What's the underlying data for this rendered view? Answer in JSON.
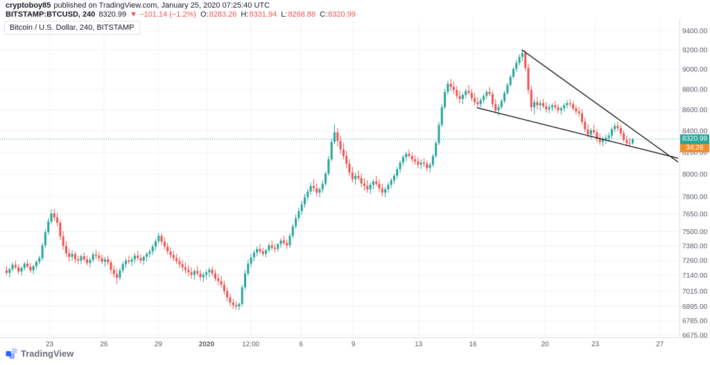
{
  "header": {
    "author": "cryptoboy85",
    "published": "published on TradingView.com, January 25, 2020 07:25:40 UTC",
    "symbol": "BITSTAMP:BTCUSD, 240",
    "last": "8320.99",
    "change": "▼ −101.14 (−1.2%)",
    "ohlc": {
      "o_label": "O:",
      "o": "8283.26",
      "h_label": "H:",
      "h": "8331.94",
      "l_label": "L:",
      "l": "8268.88",
      "c_label": "C:",
      "c": "8320.99"
    }
  },
  "legend": "Bitcoin / U.S. Dollar, 240, BITSTAMP",
  "watermark": "TradingView",
  "colors": {
    "up": "#26a69a",
    "down": "#ef5350",
    "change_negative": "#ef5350",
    "badge_bg": "#26a69a",
    "countdown_bg": "#f28e2c",
    "trendline": "#1b1b1b",
    "grid": "#f0f3fa",
    "axis_text": "#555b66",
    "brand_blue": "#2962ff"
  },
  "price_scale": {
    "labels": [
      "9400.00",
      "9200.00",
      "9000.00",
      "8800.00",
      "8600.00",
      "8400.00",
      "8200.00",
      "8000.00",
      "7800.00",
      "7650.00",
      "7500.00",
      "7380.00",
      "7260.00",
      "7140.00",
      "7015.00",
      "6895.00",
      "6785.00",
      "6675.00"
    ],
    "badge": {
      "price": "8320.99",
      "bg": "#26a69a"
    },
    "countdown": {
      "text": "34:26",
      "bg": "#f28e2c"
    }
  },
  "time_scale": {
    "labels": [
      {
        "text": "23",
        "pos": 0.073
      },
      {
        "text": "26",
        "pos": 0.153
      },
      {
        "text": "29",
        "pos": 0.233
      },
      {
        "text": "2020",
        "pos": 0.304,
        "bold": true
      },
      {
        "text": "12:00",
        "pos": 0.369
      },
      {
        "text": "6",
        "pos": 0.443
      },
      {
        "text": "9",
        "pos": 0.52
      },
      {
        "text": "13",
        "pos": 0.616
      },
      {
        "text": "16",
        "pos": 0.696
      },
      {
        "text": "20",
        "pos": 0.802
      },
      {
        "text": "23",
        "pos": 0.876
      },
      {
        "text": "27",
        "pos": 0.971
      }
    ]
  },
  "chart_data": {
    "type": "candlestick",
    "title": "Bitcoin / U.S. Dollar, 240, BITSTAMP",
    "symbol": "BITSTAMP:BTCUSD",
    "interval": "240",
    "scale": "log",
    "grid": true,
    "price_top": 9520,
    "price_bottom": 6660,
    "current_price": 8320.99,
    "up_color": "#26a69a",
    "down_color": "#ef5350",
    "last_bar": {
      "open": 8283.26,
      "high": 8331.94,
      "low": 8268.88,
      "close": 8320.99
    },
    "trendlines": [
      {
        "x1": 0.768,
        "p1": 9200,
        "x2": 0.998,
        "p2": 8110
      },
      {
        "x1": 0.702,
        "p1": 8620,
        "x2": 0.998,
        "p2": 8145
      }
    ],
    "candles": [
      [
        7180,
        7215,
        7140,
        7160
      ],
      [
        7160,
        7200,
        7125,
        7190
      ],
      [
        7190,
        7245,
        7170,
        7225
      ],
      [
        7225,
        7260,
        7190,
        7205
      ],
      [
        7205,
        7230,
        7150,
        7170
      ],
      [
        7170,
        7215,
        7140,
        7200
      ],
      [
        7200,
        7250,
        7180,
        7235
      ],
      [
        7235,
        7265,
        7200,
        7210
      ],
      [
        7210,
        7240,
        7160,
        7180
      ],
      [
        7180,
        7225,
        7150,
        7215
      ],
      [
        7215,
        7260,
        7190,
        7250
      ],
      [
        7250,
        7300,
        7230,
        7280
      ],
      [
        7280,
        7405,
        7260,
        7385
      ],
      [
        7385,
        7520,
        7365,
        7495
      ],
      [
        7495,
        7615,
        7475,
        7585
      ],
      [
        7585,
        7690,
        7560,
        7655
      ],
      [
        7655,
        7695,
        7590,
        7620
      ],
      [
        7620,
        7660,
        7545,
        7575
      ],
      [
        7575,
        7600,
        7430,
        7460
      ],
      [
        7460,
        7505,
        7350,
        7380
      ],
      [
        7380,
        7420,
        7290,
        7320
      ],
      [
        7320,
        7360,
        7250,
        7290
      ],
      [
        7290,
        7345,
        7260,
        7315
      ],
      [
        7315,
        7335,
        7240,
        7270
      ],
      [
        7270,
        7300,
        7230,
        7260
      ],
      [
        7260,
        7310,
        7230,
        7295
      ],
      [
        7295,
        7325,
        7250,
        7270
      ],
      [
        7270,
        7300,
        7220,
        7240
      ],
      [
        7240,
        7285,
        7205,
        7265
      ],
      [
        7265,
        7330,
        7245,
        7310
      ],
      [
        7310,
        7350,
        7270,
        7300
      ],
      [
        7300,
        7330,
        7250,
        7280
      ],
      [
        7280,
        7310,
        7230,
        7250
      ],
      [
        7250,
        7290,
        7210,
        7270
      ],
      [
        7270,
        7300,
        7225,
        7245
      ],
      [
        7245,
        7265,
        7150,
        7185
      ],
      [
        7185,
        7220,
        7120,
        7150
      ],
      [
        7150,
        7190,
        7070,
        7120
      ],
      [
        7120,
        7200,
        7100,
        7180
      ],
      [
        7180,
        7250,
        7160,
        7230
      ],
      [
        7230,
        7280,
        7200,
        7260
      ],
      [
        7260,
        7300,
        7230,
        7250
      ],
      [
        7250,
        7290,
        7215,
        7270
      ],
      [
        7270,
        7320,
        7240,
        7300
      ],
      [
        7300,
        7340,
        7260,
        7280
      ],
      [
        7280,
        7310,
        7235,
        7260
      ],
      [
        7260,
        7300,
        7225,
        7290
      ],
      [
        7290,
        7330,
        7255,
        7315
      ],
      [
        7315,
        7355,
        7285,
        7335
      ],
      [
        7335,
        7395,
        7305,
        7375
      ],
      [
        7375,
        7440,
        7345,
        7420
      ],
      [
        7420,
        7490,
        7400,
        7465
      ],
      [
        7465,
        7485,
        7390,
        7415
      ],
      [
        7415,
        7450,
        7350,
        7375
      ],
      [
        7375,
        7405,
        7310,
        7335
      ],
      [
        7335,
        7370,
        7280,
        7305
      ],
      [
        7305,
        7340,
        7255,
        7280
      ],
      [
        7280,
        7315,
        7230,
        7255
      ],
      [
        7255,
        7290,
        7200,
        7230
      ],
      [
        7230,
        7265,
        7175,
        7205
      ],
      [
        7205,
        7245,
        7155,
        7185
      ],
      [
        7185,
        7225,
        7135,
        7165
      ],
      [
        7165,
        7205,
        7115,
        7145
      ],
      [
        7145,
        7190,
        7105,
        7175
      ],
      [
        7175,
        7215,
        7135,
        7155
      ],
      [
        7155,
        7185,
        7095,
        7125
      ],
      [
        7125,
        7165,
        7085,
        7145
      ],
      [
        7145,
        7185,
        7105,
        7165
      ],
      [
        7165,
        7205,
        7125,
        7185
      ],
      [
        7185,
        7215,
        7135,
        7155
      ],
      [
        7155,
        7185,
        7095,
        7115
      ],
      [
        7115,
        7155,
        7060,
        7095
      ],
      [
        7095,
        7135,
        7040,
        7065
      ],
      [
        7065,
        7095,
        6985,
        7015
      ],
      [
        7015,
        7045,
        6935,
        6965
      ],
      [
        6965,
        6995,
        6895,
        6925
      ],
      [
        6925,
        6955,
        6875,
        6905
      ],
      [
        6905,
        6935,
        6870,
        6895
      ],
      [
        6895,
        6925,
        6865,
        6915
      ],
      [
        6915,
        7065,
        6895,
        7045
      ],
      [
        7045,
        7185,
        7025,
        7155
      ],
      [
        7155,
        7265,
        7135,
        7235
      ],
      [
        7235,
        7315,
        7205,
        7285
      ],
      [
        7285,
        7345,
        7255,
        7325
      ],
      [
        7325,
        7375,
        7295,
        7355
      ],
      [
        7355,
        7395,
        7315,
        7335
      ],
      [
        7335,
        7365,
        7295,
        7315
      ],
      [
        7315,
        7355,
        7285,
        7345
      ],
      [
        7345,
        7405,
        7325,
        7385
      ],
      [
        7385,
        7425,
        7345,
        7365
      ],
      [
        7365,
        7395,
        7325,
        7355
      ],
      [
        7355,
        7405,
        7335,
        7395
      ],
      [
        7395,
        7445,
        7365,
        7425
      ],
      [
        7425,
        7465,
        7385,
        7405
      ],
      [
        7405,
        7435,
        7355,
        7385
      ],
      [
        7385,
        7485,
        7365,
        7465
      ],
      [
        7465,
        7565,
        7445,
        7545
      ],
      [
        7545,
        7645,
        7525,
        7615
      ],
      [
        7615,
        7705,
        7585,
        7675
      ],
      [
        7675,
        7765,
        7645,
        7735
      ],
      [
        7735,
        7825,
        7705,
        7795
      ],
      [
        7795,
        7875,
        7765,
        7845
      ],
      [
        7845,
        7925,
        7815,
        7895
      ],
      [
        7895,
        7955,
        7845,
        7875
      ],
      [
        7875,
        7915,
        7805,
        7835
      ],
      [
        7835,
        7885,
        7795,
        7865
      ],
      [
        7865,
        7945,
        7835,
        7915
      ],
      [
        7915,
        8025,
        7895,
        8005
      ],
      [
        8005,
        8165,
        7985,
        8135
      ],
      [
        8135,
        8325,
        8115,
        8295
      ],
      [
        8295,
        8460,
        8275,
        8385
      ],
      [
        8385,
        8425,
        8255,
        8305
      ],
      [
        8305,
        8355,
        8185,
        8225
      ],
      [
        8225,
        8285,
        8135,
        8165
      ],
      [
        8165,
        8215,
        8055,
        8095
      ],
      [
        8095,
        8135,
        7985,
        8015
      ],
      [
        8015,
        8065,
        7925,
        7955
      ],
      [
        7955,
        8015,
        7905,
        7985
      ],
      [
        7985,
        8035,
        7945,
        7965
      ],
      [
        7965,
        8005,
        7885,
        7915
      ],
      [
        7915,
        7965,
        7855,
        7895
      ],
      [
        7895,
        7945,
        7835,
        7865
      ],
      [
        7865,
        7925,
        7825,
        7905
      ],
      [
        7905,
        7955,
        7865,
        7935
      ],
      [
        7935,
        7985,
        7895,
        7915
      ],
      [
        7915,
        7955,
        7845,
        7875
      ],
      [
        7875,
        7915,
        7805,
        7835
      ],
      [
        7835,
        7885,
        7795,
        7865
      ],
      [
        7865,
        7925,
        7835,
        7905
      ],
      [
        7905,
        7965,
        7875,
        7945
      ],
      [
        7945,
        8005,
        7915,
        7985
      ],
      [
        7985,
        8065,
        7955,
        8045
      ],
      [
        8045,
        8125,
        8015,
        8105
      ],
      [
        8105,
        8175,
        8075,
        8155
      ],
      [
        8155,
        8205,
        8115,
        8185
      ],
      [
        8185,
        8225,
        8145,
        8165
      ],
      [
        8165,
        8195,
        8105,
        8135
      ],
      [
        8135,
        8175,
        8085,
        8115
      ],
      [
        8115,
        8155,
        8055,
        8085
      ],
      [
        8085,
        8135,
        8045,
        8105
      ],
      [
        8105,
        8145,
        8065,
        8095
      ],
      [
        8095,
        8125,
        8025,
        8055
      ],
      [
        8055,
        8105,
        8015,
        8085
      ],
      [
        8085,
        8185,
        8065,
        8165
      ],
      [
        8165,
        8305,
        8145,
        8285
      ],
      [
        8285,
        8485,
        8265,
        8455
      ],
      [
        8455,
        8655,
        8435,
        8625
      ],
      [
        8625,
        8805,
        8605,
        8775
      ],
      [
        8775,
        8885,
        8745,
        8855
      ],
      [
        8855,
        8905,
        8785,
        8825
      ],
      [
        8825,
        8875,
        8755,
        8795
      ],
      [
        8795,
        8835,
        8705,
        8735
      ],
      [
        8735,
        8785,
        8665,
        8705
      ],
      [
        8705,
        8765,
        8655,
        8745
      ],
      [
        8745,
        8805,
        8715,
        8785
      ],
      [
        8785,
        8845,
        8745,
        8765
      ],
      [
        8765,
        8805,
        8685,
        8715
      ],
      [
        8715,
        8765,
        8645,
        8675
      ],
      [
        8675,
        8725,
        8615,
        8655
      ],
      [
        8655,
        8715,
        8625,
        8695
      ],
      [
        8695,
        8755,
        8665,
        8735
      ],
      [
        8735,
        8795,
        8705,
        8775
      ],
      [
        8775,
        8825,
        8735,
        8755
      ],
      [
        8755,
        8785,
        8625,
        8655
      ],
      [
        8655,
        8705,
        8565,
        8595
      ],
      [
        8595,
        8655,
        8545,
        8625
      ],
      [
        8625,
        8705,
        8605,
        8685
      ],
      [
        8685,
        8785,
        8665,
        8765
      ],
      [
        8765,
        8865,
        8745,
        8845
      ],
      [
        8845,
        8945,
        8825,
        8925
      ],
      [
        8925,
        9025,
        8905,
        9005
      ],
      [
        9005,
        9095,
        8975,
        9065
      ],
      [
        9065,
        9155,
        9035,
        9125
      ],
      [
        9125,
        9200,
        9085,
        9165
      ],
      [
        9165,
        9195,
        8985,
        9015
      ],
      [
        9015,
        9055,
        8755,
        8795
      ],
      [
        8795,
        8835,
        8585,
        8625
      ],
      [
        8625,
        8705,
        8555,
        8675
      ],
      [
        8675,
        8725,
        8605,
        8645
      ],
      [
        8645,
        8695,
        8595,
        8665
      ],
      [
        8665,
        8705,
        8615,
        8635
      ],
      [
        8635,
        8675,
        8575,
        8605
      ],
      [
        8605,
        8655,
        8565,
        8625
      ],
      [
        8625,
        8665,
        8585,
        8645
      ],
      [
        8645,
        8685,
        8605,
        8625
      ],
      [
        8625,
        8655,
        8565,
        8595
      ],
      [
        8595,
        8635,
        8555,
        8615
      ],
      [
        8615,
        8665,
        8585,
        8645
      ],
      [
        8645,
        8695,
        8615,
        8665
      ],
      [
        8665,
        8705,
        8625,
        8655
      ],
      [
        8655,
        8685,
        8595,
        8615
      ],
      [
        8615,
        8645,
        8555,
        8585
      ],
      [
        8585,
        8625,
        8535,
        8565
      ],
      [
        8565,
        8605,
        8455,
        8485
      ],
      [
        8485,
        8525,
        8385,
        8415
      ],
      [
        8415,
        8465,
        8335,
        8365
      ],
      [
        8365,
        8425,
        8325,
        8405
      ],
      [
        8405,
        8455,
        8365,
        8385
      ],
      [
        8385,
        8415,
        8295,
        8325
      ],
      [
        8325,
        8375,
        8265,
        8295
      ],
      [
        8295,
        8345,
        8255,
        8315
      ],
      [
        8315,
        8365,
        8275,
        8335
      ],
      [
        8335,
        8385,
        8295,
        8355
      ],
      [
        8355,
        8435,
        8325,
        8415
      ],
      [
        8415,
        8475,
        8385,
        8445
      ],
      [
        8445,
        8485,
        8395,
        8425
      ],
      [
        8425,
        8455,
        8345,
        8375
      ],
      [
        8375,
        8405,
        8295,
        8315
      ],
      [
        8315,
        8355,
        8255,
        8285
      ],
      [
        8285,
        8335,
        8245,
        8283
      ],
      [
        8283.26,
        8331.94,
        8268.88,
        8320.99
      ]
    ]
  }
}
